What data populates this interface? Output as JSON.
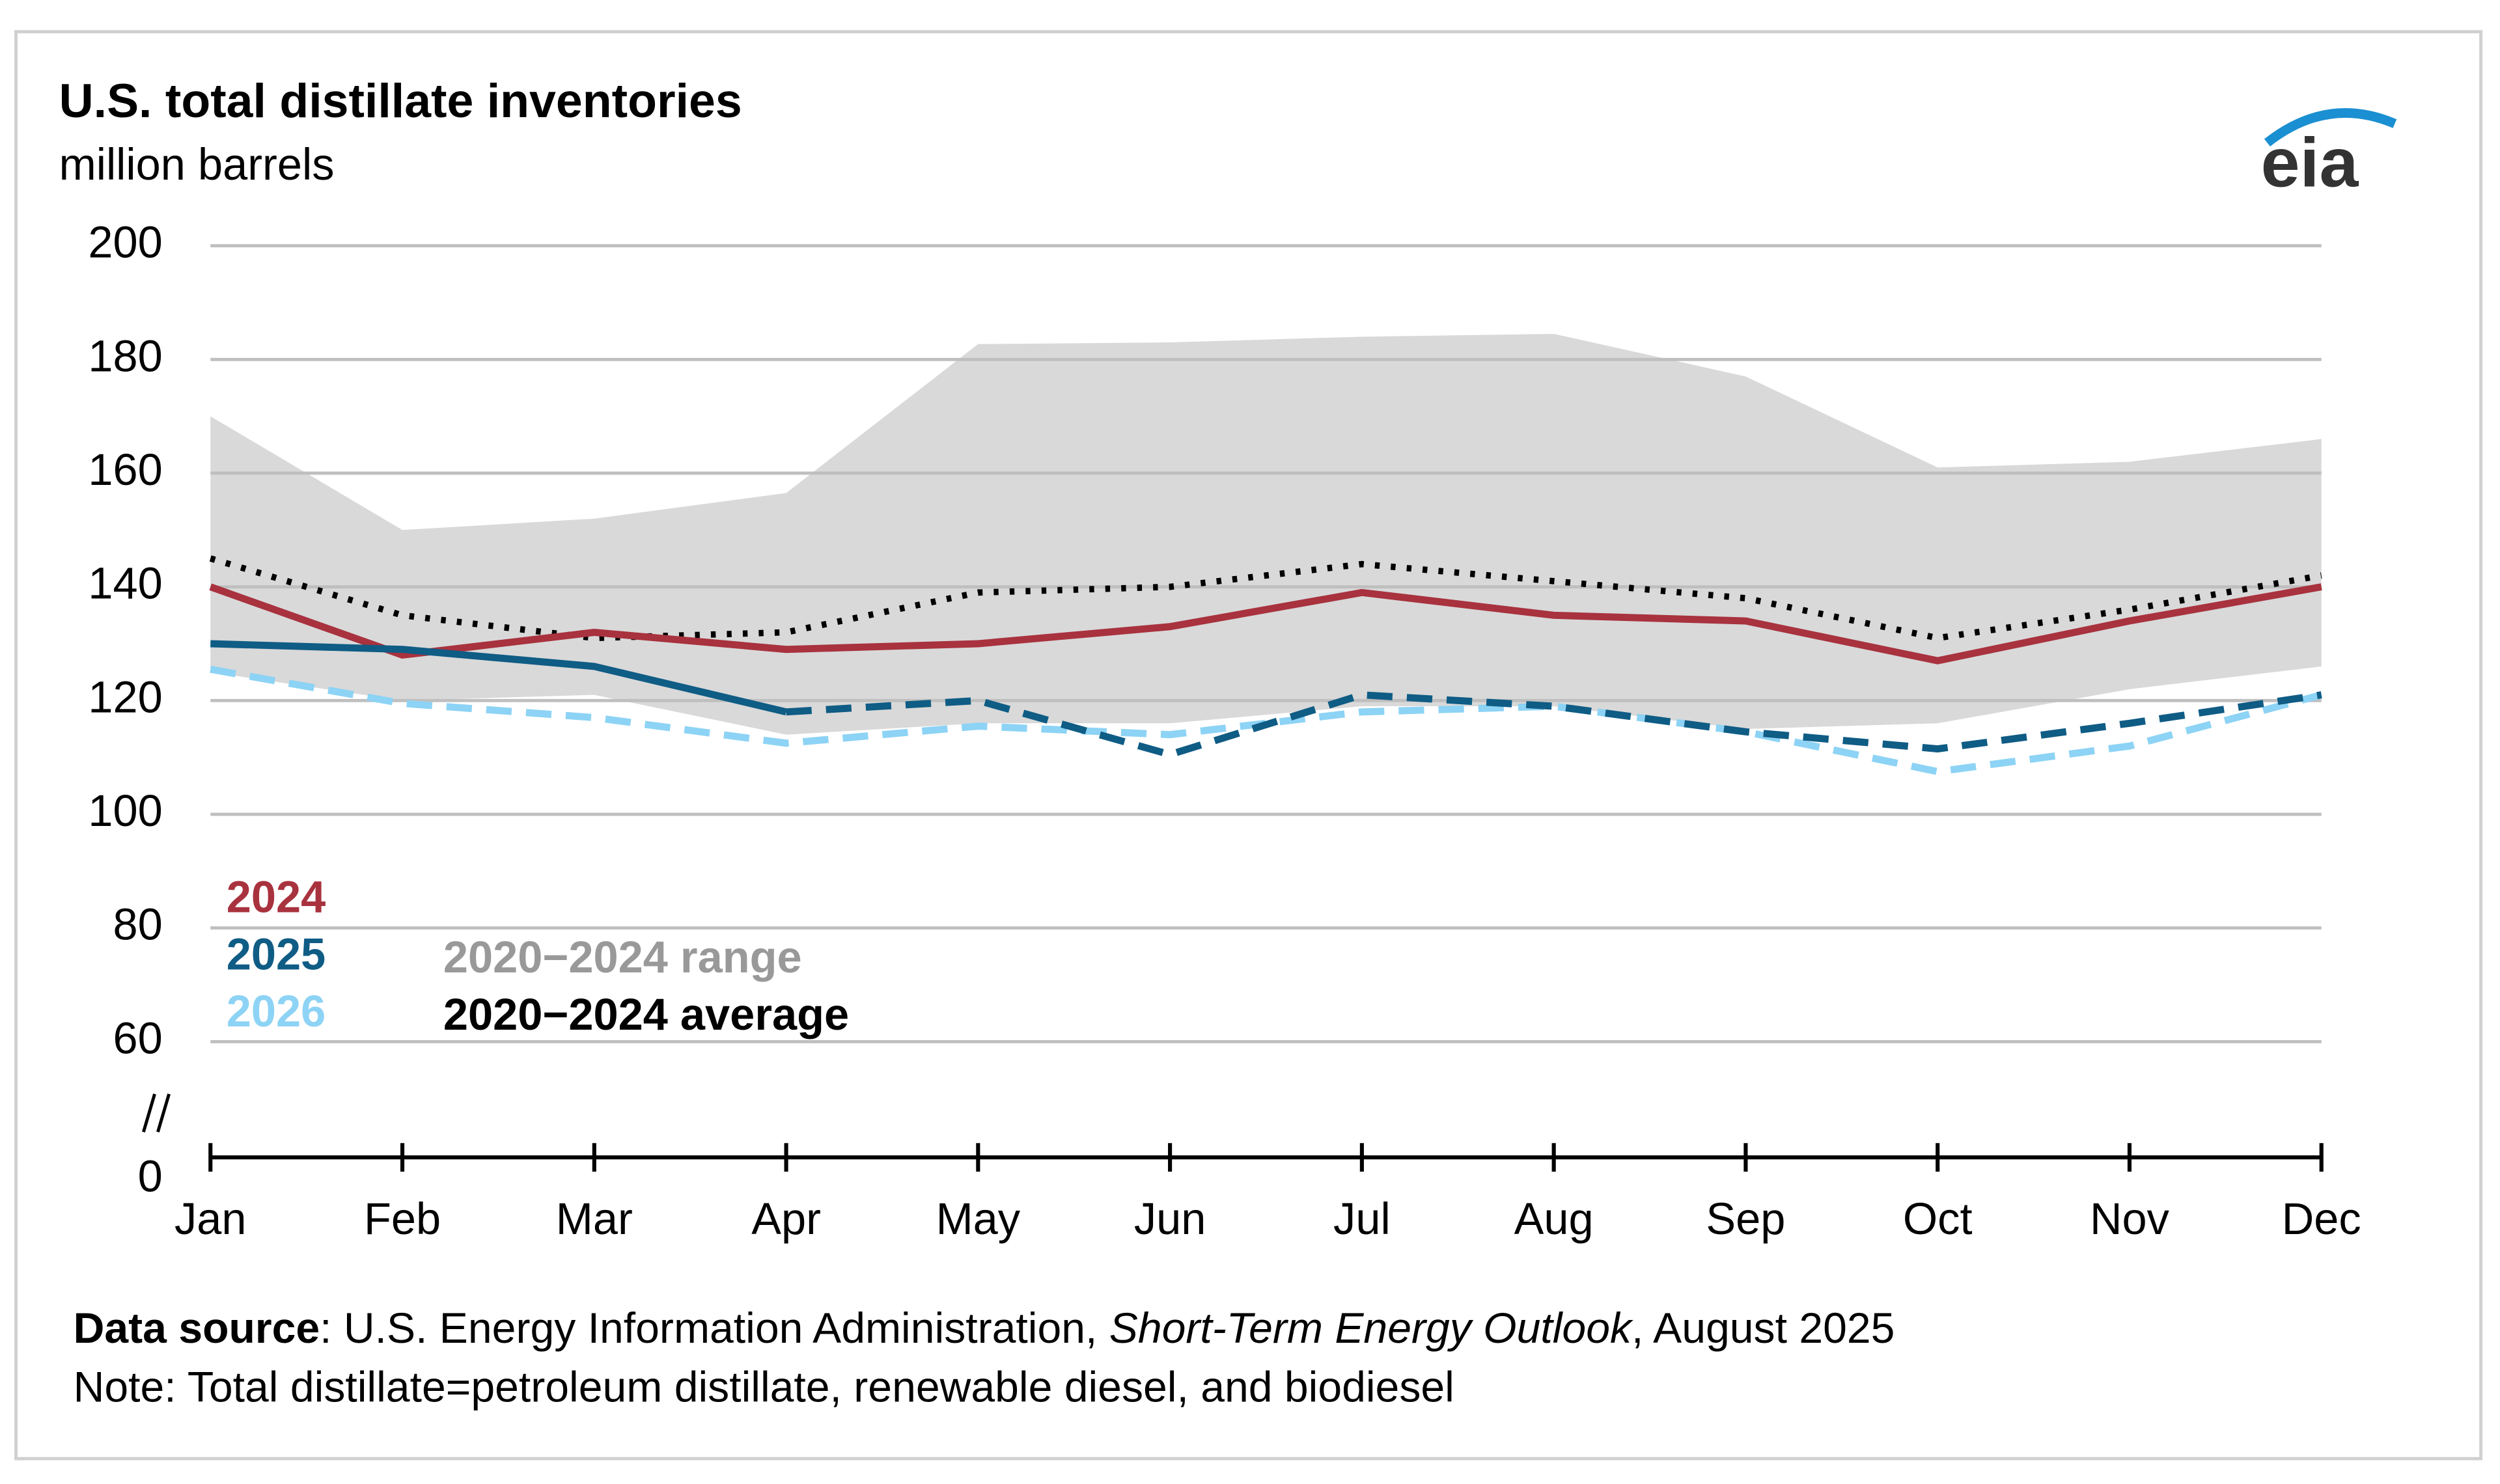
{
  "chart_data": {
    "type": "line",
    "title": "U.S. total distillate inventories",
    "subtitle": "million barrels",
    "logo": "eia",
    "categories": [
      "Jan",
      "Feb",
      "Mar",
      "Apr",
      "May",
      "Jun",
      "Jul",
      "Aug",
      "Sep",
      "Oct",
      "Nov",
      "Dec"
    ],
    "ylim": [
      0,
      200
    ],
    "axis_break": [
      0,
      60
    ],
    "yticks": [
      0,
      60,
      80,
      100,
      120,
      140,
      160,
      180,
      200
    ],
    "grid": true,
    "range": {
      "name": "2020−2024 range",
      "color": "#d9d9d9",
      "upper": [
        170,
        150,
        152,
        156.5,
        182.7,
        183,
        184,
        184.5,
        177,
        161,
        162,
        166
      ],
      "lower": [
        125,
        120,
        121,
        114,
        116,
        116,
        119,
        119,
        115,
        116,
        122,
        126
      ]
    },
    "series": [
      {
        "name": "2020−2024 average",
        "color": "#000000",
        "style": "dotted",
        "values": [
          145,
          135,
          131,
          132,
          139,
          140,
          144,
          141,
          138,
          131,
          136,
          142
        ]
      },
      {
        "name": "2024",
        "color": "#a8323e",
        "style": "solid",
        "values": [
          140,
          128,
          132,
          129,
          130,
          133,
          139,
          135,
          134,
          127,
          134,
          140
        ]
      },
      {
        "name": "2025",
        "color": "#0f5c85",
        "style": "solid",
        "dashed_from": 3,
        "values": [
          130,
          129,
          126,
          118,
          120,
          110.5,
          121,
          119,
          114.5,
          111.5,
          116,
          121
        ]
      },
      {
        "name": "2026",
        "color": "#8dd3f5",
        "style": "dashed",
        "values": [
          125.5,
          119.5,
          117,
          112.5,
          115.5,
          114,
          118,
          119,
          114.5,
          107.5,
          112,
          121
        ]
      }
    ],
    "source_label": "Data source",
    "source_text": ": U.S. Energy Information Administration, ",
    "source_italic": "Short-Term Energy Outlook",
    "source_end": ", August 2025",
    "note": "Note: Total distillate=petroleum distillate, renewable diesel, and biodiesel"
  }
}
